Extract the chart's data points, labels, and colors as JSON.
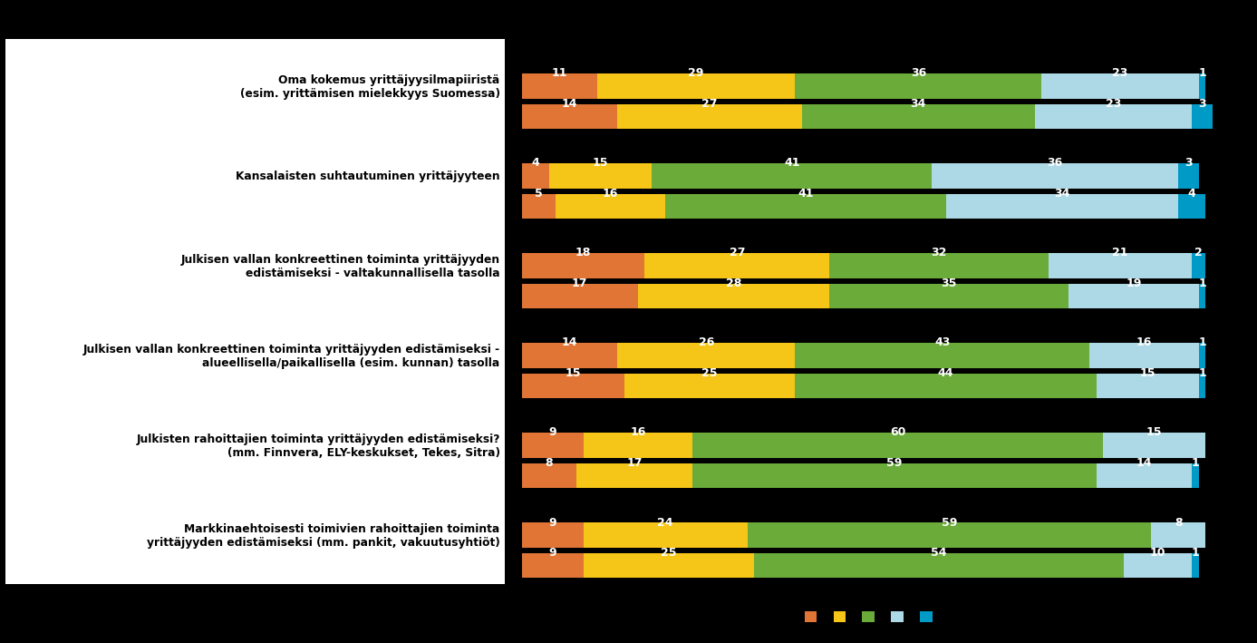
{
  "categories": [
    "Oma kokemus yrittäjyysilmapiiristä\n(esim. yrittämisen mielekkyys Suomessa)",
    "Kansalaisten suhtautuminen yrittäjyyteen",
    "Julkisen vallan konkreettinen toiminta yrittäjyyden\nedistämiseksi - valtakunnallisella tasolla",
    "Julkisen vallan konkreettinen toiminta yrittäjyyden edistämiseksi -\nalueellisella/paikallisella (esim. kunnan) tasolla",
    "Julkisten rahoittajien toiminta yrittäjyyden edistämiseksi?\n(mm. Finnvera, ELY-keskukset, Tekes, Sitra)",
    "Markkinaehtoisesti toimivien rahoittajien toiminta\nyrittäjyyden edistämiseksi (mm. pankit, vakuutusyhtiöt)"
  ],
  "data": [
    [
      [
        11,
        29,
        36,
        23,
        1
      ],
      [
        14,
        27,
        34,
        23,
        3
      ]
    ],
    [
      [
        4,
        15,
        41,
        36,
        3
      ],
      [
        5,
        16,
        41,
        34,
        4
      ]
    ],
    [
      [
        18,
        27,
        32,
        21,
        2
      ],
      [
        17,
        28,
        35,
        19,
        1
      ]
    ],
    [
      [
        14,
        26,
        43,
        16,
        1
      ],
      [
        15,
        25,
        44,
        15,
        1
      ]
    ],
    [
      [
        9,
        16,
        60,
        15,
        0
      ],
      [
        8,
        17,
        59,
        14,
        1
      ]
    ],
    [
      [
        9,
        24,
        59,
        8,
        0
      ],
      [
        9,
        25,
        54,
        10,
        1
      ]
    ]
  ],
  "seg_colors": [
    "#e07535",
    "#f5c518",
    "#6aab3a",
    "#add8e6",
    "#009ac7"
  ],
  "legend_colors": [
    "#e07535",
    "#f5c518",
    "#6aab3a",
    "#add8e6",
    "#009ac7"
  ],
  "background_color": "#000000",
  "label_bg_color": "#ffffff",
  "text_color": "#000000",
  "bar_label_color": "#ffffff",
  "figsize": [
    13.87,
    7.09
  ]
}
